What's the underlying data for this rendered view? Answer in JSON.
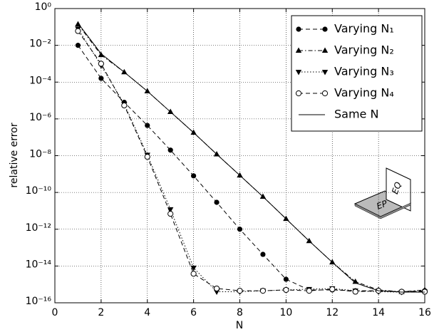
{
  "chart_data": {
    "type": "line",
    "xlabel": "N",
    "ylabel": "relative error",
    "x": [
      1,
      2,
      3,
      4,
      5,
      6,
      7,
      8,
      9,
      10,
      11,
      12,
      13,
      14,
      15,
      16
    ],
    "series": [
      {
        "name": "Varying N₁",
        "color": "#000000",
        "linestyle": "dashed",
        "marker": "circle",
        "values": [
          0.01,
          0.00016,
          8e-06,
          4.4e-07,
          2e-08,
          8e-10,
          2.9e-11,
          1e-12,
          4.3e-14,
          1.9e-15,
          5e-16,
          5e-16,
          4.5e-16,
          4.5e-16,
          4e-16,
          4.5e-16
        ]
      },
      {
        "name": "Varying N₂",
        "color": "#000000",
        "linestyle": "dashdot",
        "marker": "triangle-up",
        "values": [
          0.14,
          0.003,
          0.00035,
          3.2e-05,
          2.4e-06,
          1.8e-07,
          1.2e-08,
          8.5e-10,
          5.9e-11,
          3.7e-12,
          2.3e-13,
          1.6e-14,
          1.4e-15,
          5e-16,
          4e-16,
          5e-16
        ]
      },
      {
        "name": "Varying N₃",
        "color": "#000000",
        "linestyle": "dotted",
        "marker": "triangle-down",
        "values": [
          0.08,
          0.0008,
          6.4e-06,
          1.1e-08,
          1.2e-11,
          8e-15,
          4e-16,
          4e-16,
          4.5e-16,
          5e-16,
          5.5e-16,
          6e-16,
          4.5e-16,
          4e-16,
          3.8e-16,
          4e-16
        ]
      },
      {
        "name": "Varying N₄",
        "color": "#000000",
        "linestyle": "dashed",
        "marker": "circle-open",
        "values": [
          0.06,
          0.001,
          5.4e-06,
          8.7e-09,
          6.9e-12,
          3.8e-15,
          6e-16,
          4.5e-16,
          4.5e-16,
          5e-16,
          4.5e-16,
          5.5e-16,
          4e-16,
          4.5e-16,
          4e-16,
          4e-16
        ]
      },
      {
        "name": "Same N",
        "color": "#000000",
        "linestyle": "solid",
        "marker": "none",
        "values": [
          0.16,
          0.0035,
          0.00035,
          3.2e-05,
          2.4e-06,
          1.8e-07,
          1.2e-08,
          8.5e-10,
          5.9e-11,
          3.7e-12,
          2.3e-13,
          1.6e-14,
          1.2e-15,
          4.5e-16,
          3.8e-16,
          3.8e-16
        ]
      }
    ],
    "xlim": [
      0,
      16
    ],
    "xticks": [
      0,
      2,
      4,
      6,
      8,
      10,
      12,
      14,
      16
    ],
    "ylim": [
      1e-16,
      1
    ],
    "yscale": "log",
    "yticks": [
      {
        "value": 1e-16,
        "label": "10⁻¹⁶"
      },
      {
        "value": 1e-14,
        "label": "10⁻¹⁴"
      },
      {
        "value": 1e-12,
        "label": "10⁻¹²"
      },
      {
        "value": 1e-10,
        "label": "10⁻¹⁰"
      },
      {
        "value": 1e-08,
        "label": "10⁻⁸"
      },
      {
        "value": 1e-06,
        "label": "10⁻⁶"
      },
      {
        "value": 0.0001,
        "label": "10⁻⁴"
      },
      {
        "value": 0.01,
        "label": "10⁻²"
      },
      {
        "value": 1,
        "label": "10⁰"
      }
    ],
    "grid": true,
    "legend": "upper right",
    "annotations": [
      "EQ",
      "EP"
    ]
  }
}
